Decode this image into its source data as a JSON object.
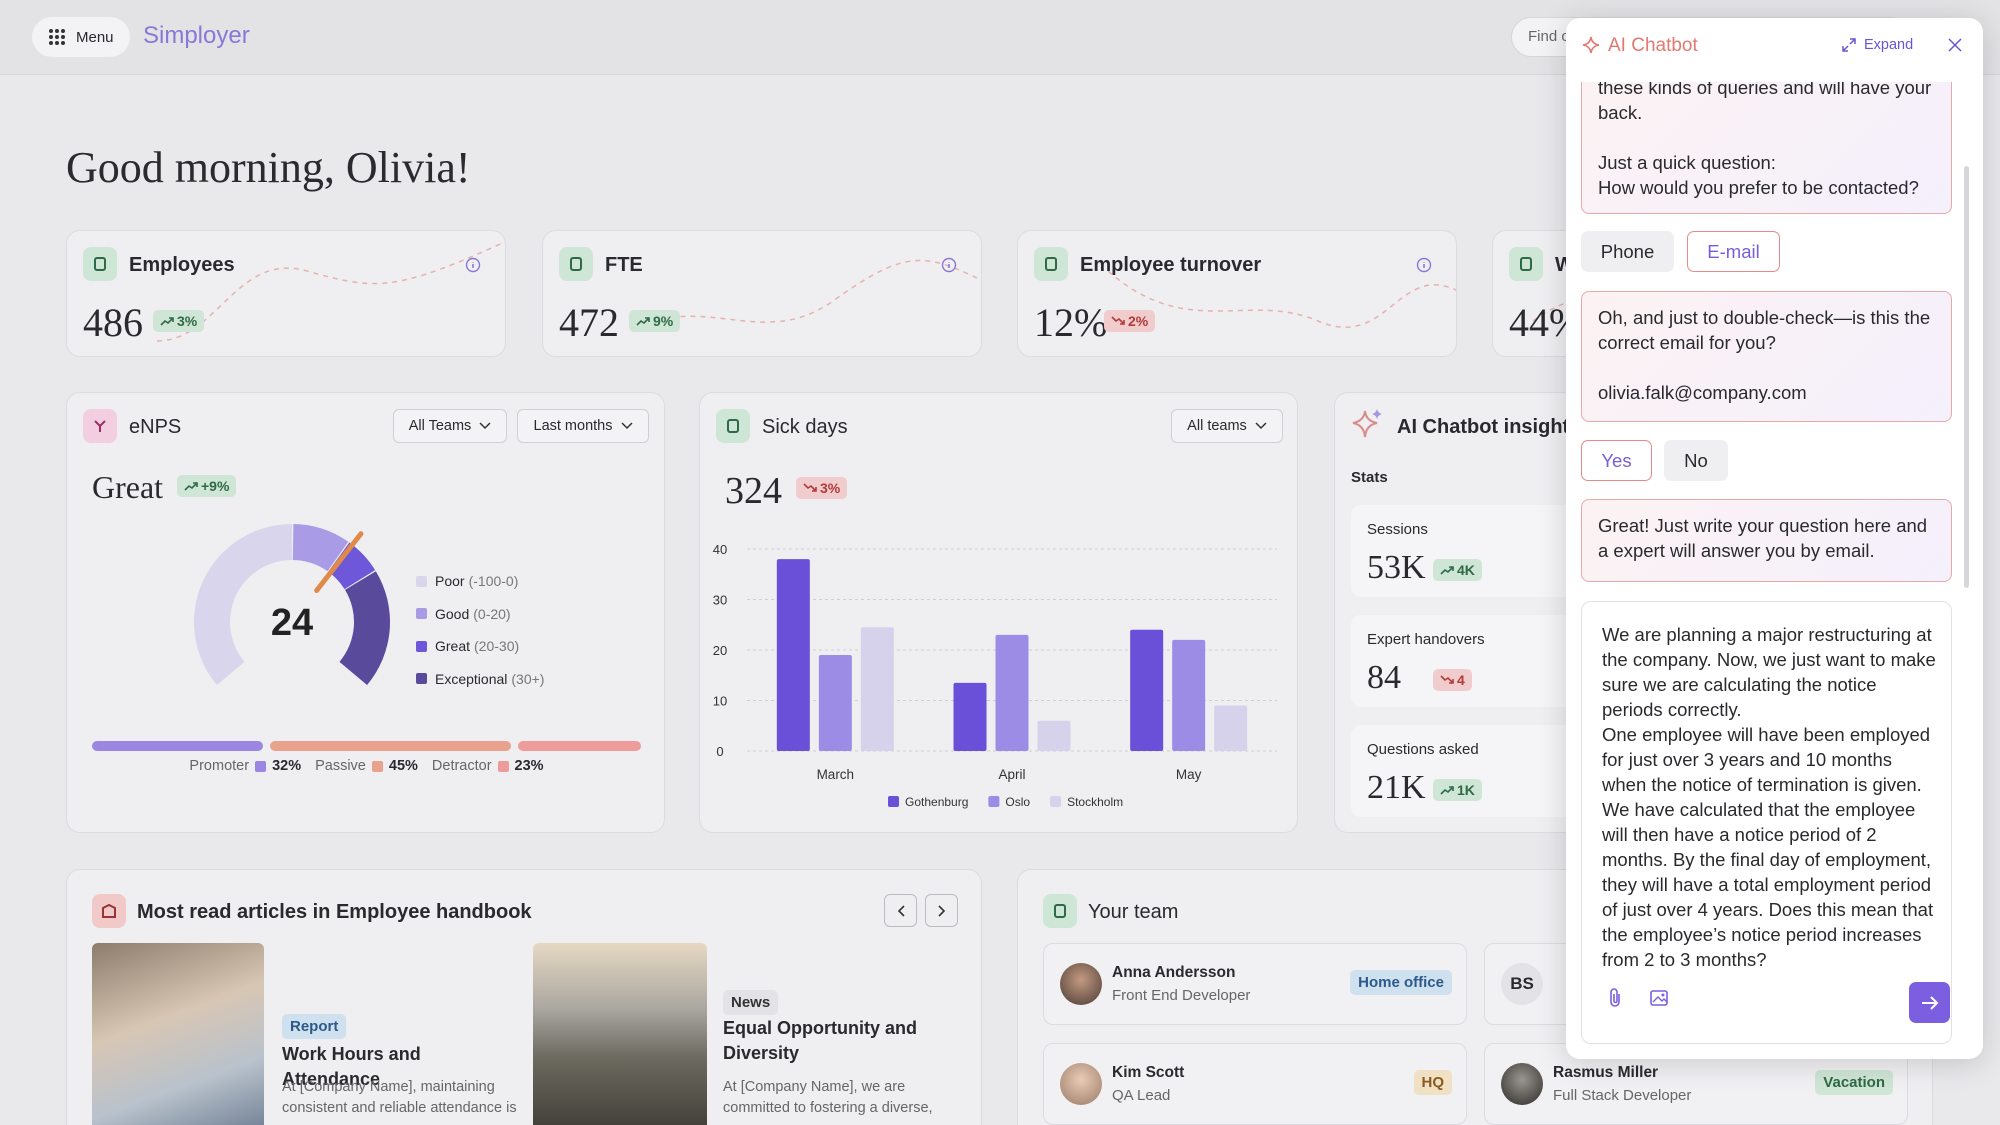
{
  "topbar": {
    "menu": "Menu",
    "brand": "Simployer",
    "search": "Find c"
  },
  "greeting": "Good morning, Olivia!",
  "kpis": [
    {
      "title": "Employees",
      "value": "486",
      "change": "3%",
      "trend": "up"
    },
    {
      "title": "FTE",
      "value": "472",
      "change": "9%",
      "trend": "up"
    },
    {
      "title": "Employee turnover",
      "value": "12%",
      "change": "2%",
      "trend": "down"
    },
    {
      "title": "W",
      "value": "44%"
    }
  ],
  "enps": {
    "title": "eNPS",
    "filters": [
      "All Teams",
      "Last months"
    ],
    "rating": "Great",
    "change": "+9%",
    "trend": "up",
    "score": "24",
    "legend": [
      {
        "label": "Poor",
        "range": "(-100-0)",
        "color": "#d9d5ec"
      },
      {
        "label": "Good",
        "range": "(0-20)",
        "color": "#a99be6"
      },
      {
        "label": "Great",
        "range": "(20-30)",
        "color": "#6e57d9"
      },
      {
        "label": "Exceptional",
        "range": "(30+)",
        "color": "#5a4a9c"
      }
    ],
    "split": [
      {
        "name": "Promoter",
        "value": 32,
        "label": "32%",
        "color": "#9b87e2"
      },
      {
        "name": "Passive",
        "value": 45,
        "label": "45%",
        "color": "#e9a28e"
      },
      {
        "name": "Detractor",
        "value": 23,
        "label": "23%",
        "color": "#ee9b9c"
      }
    ]
  },
  "sick_days": {
    "title": "Sick days",
    "filter": "All teams",
    "value": "324",
    "change": "3%",
    "trend": "down",
    "chart": {
      "type": "bar",
      "categories": [
        "March",
        "April",
        "May"
      ],
      "series": [
        {
          "name": "Gothenburg",
          "color": "#6a4fd8",
          "values": [
            38,
            13.5,
            24
          ]
        },
        {
          "name": "Oslo",
          "color": "#9d8ce6",
          "values": [
            19,
            23,
            22
          ]
        },
        {
          "name": "Stockholm",
          "color": "#d6d2ec",
          "values": [
            24.5,
            6,
            9
          ]
        }
      ],
      "ylim": [
        0,
        40
      ],
      "yticks": [
        0,
        10,
        20,
        30,
        40
      ],
      "grid": true
    }
  },
  "insights": {
    "title": "AI Chatbot insights",
    "subtitle": "Stats",
    "stats": [
      {
        "label": "Sessions",
        "value": "53K",
        "change": "4K",
        "trend": "up"
      },
      {
        "label": "Expert handovers",
        "value": "84",
        "change": "4",
        "trend": "down"
      },
      {
        "label": "Questions asked",
        "value": "21K",
        "change": "1K",
        "trend": "up"
      }
    ]
  },
  "articles": {
    "title": "Most read articles in Employee handbook",
    "items": [
      {
        "tag": "Report",
        "title": "Work Hours and Attendance",
        "excerpt": "At [Company Name], maintaining consistent and reliable attendance is"
      },
      {
        "tag": "News",
        "title": "Equal Opportunity and Diversity",
        "excerpt": "At [Company Name], we are committed to fostering a diverse,"
      }
    ]
  },
  "team": {
    "title": "Your team",
    "members": [
      {
        "name": "Anna Andersson",
        "role": "Front End Developer",
        "status": "Home office"
      },
      {
        "initials": "BS"
      },
      {
        "name": "Kim Scott",
        "role": "QA Lead",
        "status": "HQ"
      },
      {
        "name": "Rasmus Miller",
        "role": "Full Stack Developer",
        "status": "Vacation"
      }
    ]
  },
  "chatbot": {
    "title": "AI Chatbot",
    "expand": "Expand",
    "intro": [
      [
        "these kinds of queries and will have your back."
      ],
      [
        "Just a quick question:",
        "How would you prefer to be contacted?"
      ]
    ],
    "contact_options": [
      "Phone",
      "E-mail"
    ],
    "email_check": [
      [
        "Oh, and just to double-check—is this the correct email for you?"
      ],
      [
        "olivia.falk@company.com"
      ]
    ],
    "confirm_options": [
      "Yes",
      "No"
    ],
    "closing": [
      [
        "Great! Just write your question here and a expert will answer you  by email."
      ]
    ],
    "draft": [
      [
        "We are planning a major restructuring at the company. Now, we just want to make sure we are calculating the notice periods correctly.",
        "One employee will have been employed for just over 3 years and 10 months when the notice of termination is given. We have calculated that the employee will then have a notice period of 2 months. By the final day of employment, they will have a total employment period of just over 4 years. Does this mean that the employee’s notice period increases from 2 to 3 months?"
      ]
    ]
  }
}
